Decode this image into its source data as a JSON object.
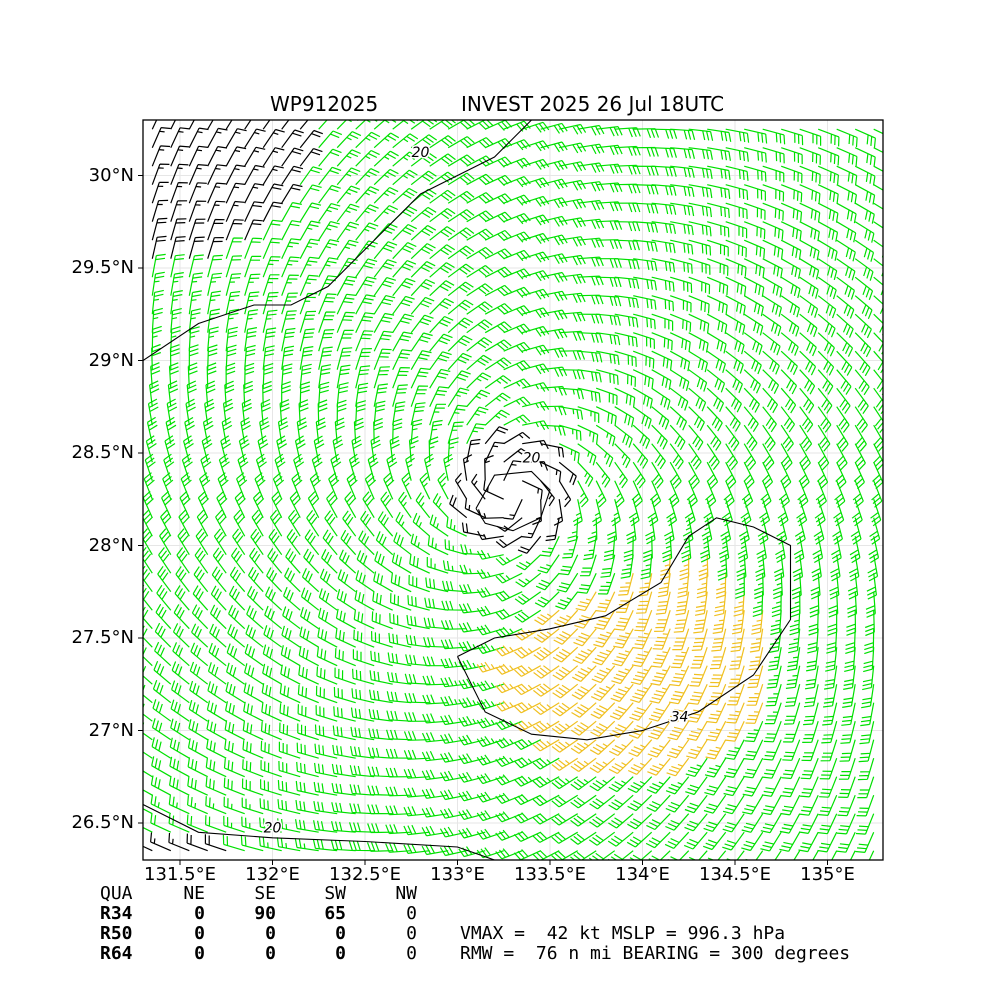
{
  "title_left": "WP912025",
  "title_right": "INVEST 2025 26 Jul 18UTC",
  "chart_data": {
    "type": "wind-barb-map",
    "storm_id": "WP912025",
    "xlim": [
      131.3,
      135.3
    ],
    "ylim": [
      26.3,
      30.3
    ],
    "xticks": [
      {
        "value": 131.5,
        "label": "131.5°E"
      },
      {
        "value": 132.0,
        "label": "132°E"
      },
      {
        "value": 132.5,
        "label": "132.5°E"
      },
      {
        "value": 133.0,
        "label": "133°E"
      },
      {
        "value": 133.5,
        "label": "133.5°E"
      },
      {
        "value": 134.0,
        "label": "134°E"
      },
      {
        "value": 134.5,
        "label": "134.5°E"
      },
      {
        "value": 135.0,
        "label": "135°E"
      }
    ],
    "yticks": [
      {
        "value": 26.5,
        "label": "26.5°N"
      },
      {
        "value": 27.0,
        "label": "27°N"
      },
      {
        "value": 27.5,
        "label": "27.5°N"
      },
      {
        "value": 28.0,
        "label": "28°N"
      },
      {
        "value": 28.5,
        "label": "28.5°N"
      },
      {
        "value": 29.0,
        "label": "29°N"
      },
      {
        "value": 29.5,
        "label": "29.5°N"
      },
      {
        "value": 30.0,
        "label": "30°N"
      }
    ],
    "grid": true,
    "center": {
      "lon": 133.3,
      "lat": 28.3
    },
    "contour_labels": [
      {
        "text": "20",
        "lon": 132.0,
        "lat": 26.45
      },
      {
        "text": "20",
        "lon": 132.8,
        "lat": 30.1
      },
      {
        "text": "20",
        "lon": 133.4,
        "lat": 28.45
      },
      {
        "text": "34",
        "lon": 134.2,
        "lat": 27.05
      }
    ],
    "colors": {
      "low": "#000000",
      "mid": "#00e000",
      "high": "#f0c020",
      "contour": "#000000"
    }
  },
  "quadrant_table": {
    "headers": [
      "QUA",
      "NE",
      "SE",
      "SW",
      "NW"
    ],
    "rows": [
      {
        "label": "R34",
        "values": [
          "0",
          "90",
          "65",
          "0"
        ]
      },
      {
        "label": "R50",
        "values": [
          "0",
          "0",
          "0",
          "0"
        ]
      },
      {
        "label": "R64",
        "values": [
          "0",
          "0",
          "0",
          "0"
        ]
      }
    ]
  },
  "stats": {
    "line1": "VMAX =  42 kt MSLP = 996.3 hPa",
    "line2": "RMW =  76 n mi BEARING = 300 degrees"
  }
}
